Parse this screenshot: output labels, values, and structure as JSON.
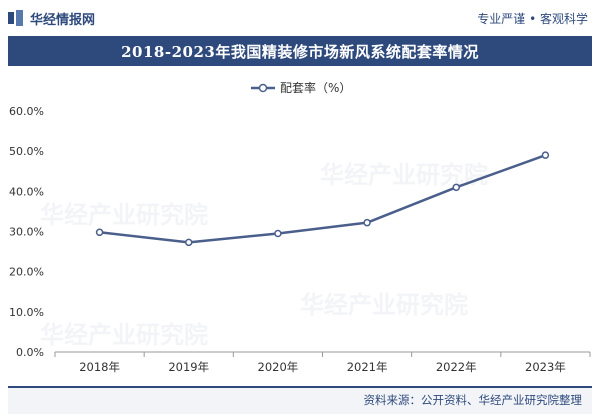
{
  "header": {
    "brand": "华经情报网",
    "slogan": "专业严谨 • 客观科学"
  },
  "chart_data": {
    "type": "line",
    "title": "2018-2023年我国精装修市场新风系统配套率情况",
    "categories": [
      "2018年",
      "2019年",
      "2020年",
      "2021年",
      "2022年",
      "2023年"
    ],
    "series": [
      {
        "name": "配套率（%）",
        "values": [
          29.8,
          27.3,
          29.5,
          32.2,
          41.0,
          49.0
        ]
      }
    ],
    "yticks": [
      "0.0%",
      "10.0%",
      "20.0%",
      "30.0%",
      "40.0%",
      "50.0%",
      "60.0%"
    ],
    "ylim": [
      0,
      60
    ],
    "xlabel": "",
    "ylabel": "",
    "legend_position": "top-center",
    "grid": false,
    "colors": {
      "line": "#4b5f8c",
      "marker_fill": "#ffffff"
    }
  },
  "footer": {
    "source": "资料来源：公开资料、华经产业研究院整理"
  },
  "watermark": {
    "text": "华经产业研究院",
    "url": "www.huaon.com"
  }
}
